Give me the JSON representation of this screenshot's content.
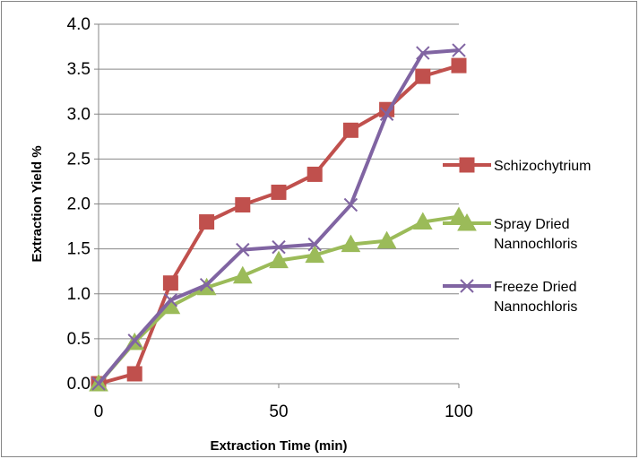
{
  "chart_data": {
    "type": "line",
    "title": "",
    "xlabel": "Extraction Time (min)",
    "ylabel": "Extraction Yield %",
    "xlim": [
      0,
      100
    ],
    "ylim": [
      0,
      4
    ],
    "x_ticks": [
      "0",
      "50",
      "100"
    ],
    "y_ticks": [
      "0.0",
      "0.5",
      "1.0",
      "1.5",
      "2.0",
      "2.5",
      "3.0",
      "3.5",
      "4.0"
    ],
    "grid": "horizontal",
    "legend_position": "right",
    "series": [
      {
        "name": "Schizochytrium",
        "color": "#C0504D",
        "marker": "square",
        "x": [
          0,
          10,
          20,
          30,
          40,
          50,
          60,
          70,
          80,
          90,
          100
        ],
        "values": [
          0.0,
          0.11,
          1.12,
          1.8,
          1.99,
          2.13,
          2.33,
          2.82,
          3.05,
          3.42,
          3.54
        ]
      },
      {
        "name": "Spray Dried Nannochloris",
        "color": "#9BBB59",
        "marker": "triangle",
        "x": [
          0,
          10,
          20,
          30,
          40,
          50,
          60,
          70,
          80,
          90,
          100
        ],
        "values": [
          0.0,
          0.46,
          0.86,
          1.07,
          1.2,
          1.37,
          1.43,
          1.55,
          1.59,
          1.8,
          1.86
        ]
      },
      {
        "name": "Freeze Dried Nannochloris",
        "color": "#8064A2",
        "marker": "x",
        "x": [
          0,
          10,
          20,
          30,
          40,
          50,
          60,
          70,
          80,
          90,
          100
        ],
        "values": [
          0.0,
          0.48,
          0.93,
          1.1,
          1.49,
          1.52,
          1.55,
          1.99,
          3.0,
          3.68,
          3.71
        ]
      }
    ]
  }
}
